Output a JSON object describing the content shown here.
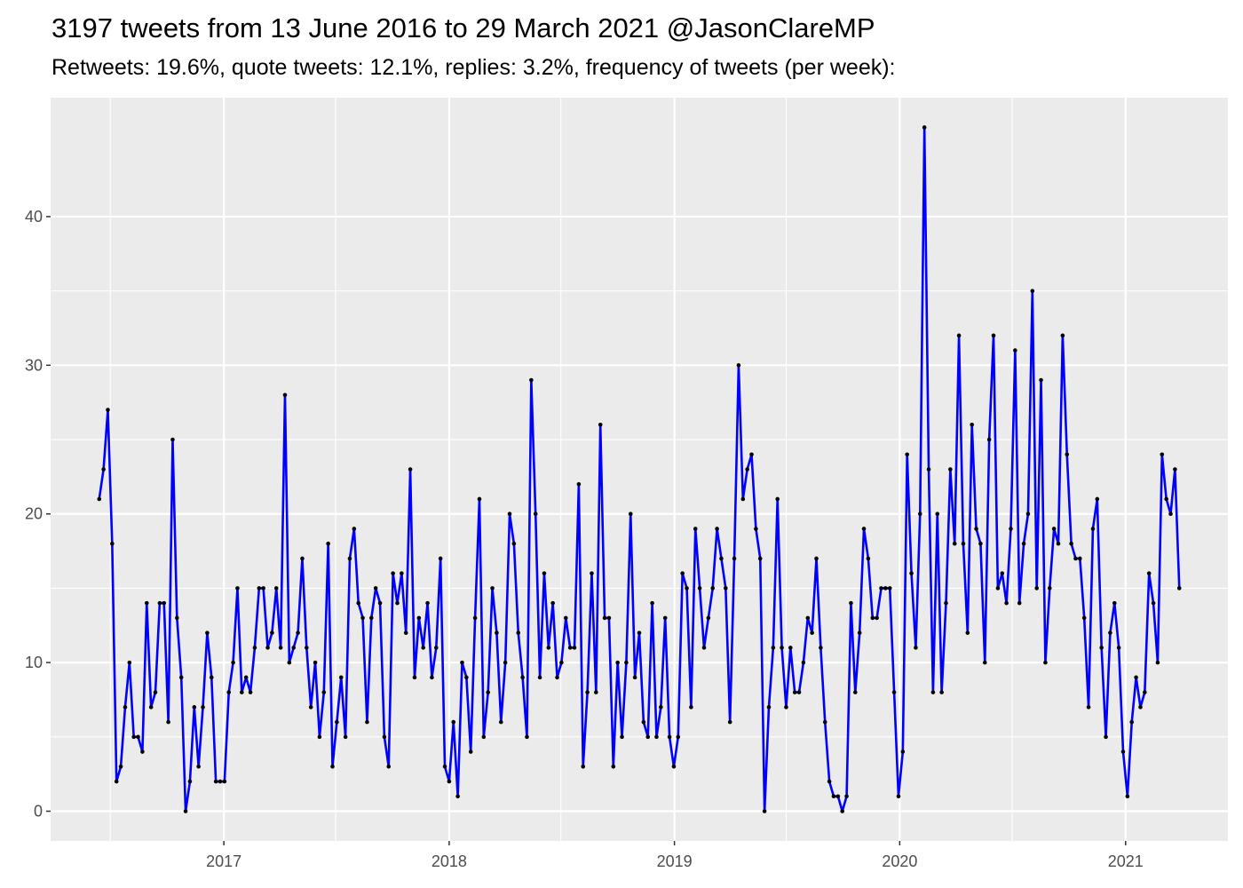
{
  "chart_data": {
    "type": "line",
    "title": "3197 tweets from 13 June 2016 to 29 March 2021 @JasonClareMP",
    "subtitle": "Retweets: 19.6%, quote tweets: 12.1%, replies: 3.2%, frequency of tweets (per week):",
    "xlabel": "",
    "ylabel": "",
    "x_start": "2016-06-13",
    "x_end": "2021-03-29",
    "x_ticks": [
      "2017",
      "2018",
      "2019",
      "2020",
      "2021"
    ],
    "y_ticks": [
      0,
      10,
      20,
      30,
      40
    ],
    "ylim": [
      -2,
      48
    ],
    "grid": true,
    "legend": "none",
    "line_color": "#0000ff",
    "point_color": "#000000",
    "panel_color": "#ebebeb",
    "gridline_color": "#ffffff",
    "series": [
      {
        "values": [
          21,
          23,
          27,
          18,
          2,
          3,
          7,
          10,
          5,
          5,
          4,
          14,
          7,
          8,
          14,
          14,
          6,
          25,
          13,
          9,
          0,
          2,
          7,
          3,
          7,
          12,
          9,
          2,
          2,
          2,
          8,
          10,
          15,
          8,
          9,
          8,
          11,
          15,
          15,
          11,
          12,
          15,
          11,
          28,
          10,
          11,
          12,
          17,
          11,
          7,
          10,
          5,
          8,
          18,
          3,
          6,
          9,
          5,
          17,
          19,
          14,
          13,
          6,
          13,
          15,
          14,
          5,
          3,
          16,
          14,
          16,
          12,
          23,
          9,
          13,
          11,
          14,
          9,
          11,
          17,
          3,
          2,
          6,
          1,
          10,
          9,
          4,
          13,
          21,
          5,
          8,
          15,
          12,
          6,
          10,
          20,
          18,
          12,
          9,
          5,
          29,
          20,
          9,
          16,
          11,
          14,
          9,
          10,
          13,
          11,
          11,
          22,
          3,
          8,
          16,
          8,
          26,
          13,
          13,
          3,
          10,
          5,
          10,
          20,
          9,
          12,
          6,
          5,
          14,
          5,
          7,
          13,
          5,
          3,
          5,
          16,
          15,
          7,
          19,
          15,
          11,
          13,
          15,
          19,
          17,
          15,
          6,
          17,
          30,
          21,
          23,
          24,
          19,
          17,
          0,
          7,
          11,
          21,
          11,
          7,
          11,
          8,
          8,
          10,
          13,
          12,
          17,
          11,
          6,
          2,
          1,
          1,
          0,
          1,
          14,
          8,
          12,
          19,
          17,
          13,
          13,
          15,
          15,
          15,
          8,
          1,
          4,
          24,
          16,
          11,
          20,
          46,
          23,
          8,
          20,
          8,
          14,
          23,
          18,
          32,
          18,
          12,
          26,
          19,
          18,
          10,
          25,
          32,
          15,
          16,
          14,
          19,
          31,
          14,
          18,
          20,
          35,
          15,
          29,
          10,
          15,
          19,
          18,
          32,
          24,
          18,
          17,
          17,
          13,
          7,
          19,
          21,
          11,
          5,
          12,
          14,
          11,
          4,
          1,
          6,
          9,
          7,
          8,
          16,
          14,
          10,
          24,
          21,
          20,
          23,
          15
        ]
      }
    ]
  }
}
